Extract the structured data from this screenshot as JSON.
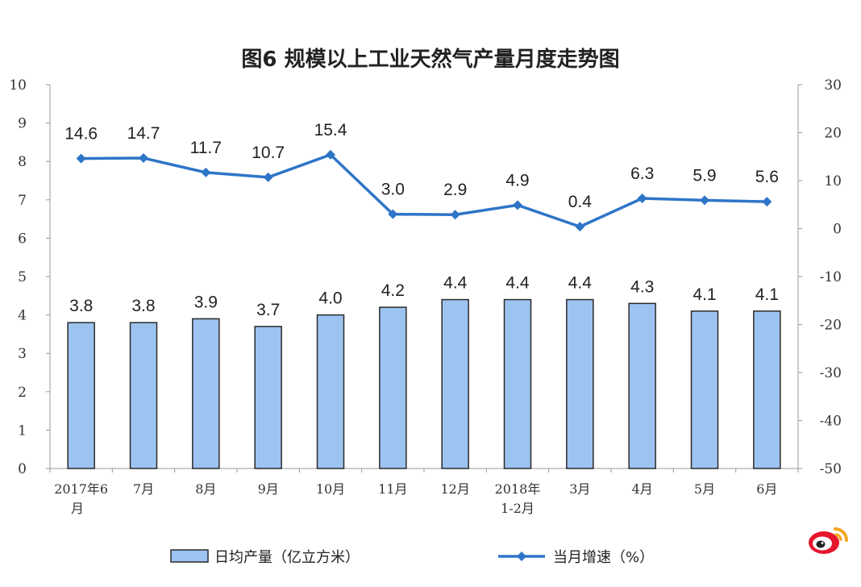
{
  "chart_data": {
    "type": "bar+line",
    "title": "图6 规模以上工业天然气产量月度走势图",
    "categories": [
      [
        "2017年6",
        "月"
      ],
      [
        "7月"
      ],
      [
        "8月"
      ],
      [
        "9月"
      ],
      [
        "10月"
      ],
      [
        "11月"
      ],
      [
        "12月"
      ],
      [
        "2018年",
        "1-2月"
      ],
      [
        "3月"
      ],
      [
        "4月"
      ],
      [
        "5月"
      ],
      [
        "6月"
      ]
    ],
    "series": [
      {
        "name": "日均产量（亿立方米）",
        "kind": "bar",
        "axis": "left",
        "color": "#9dc3f0",
        "values": [
          3.8,
          3.8,
          3.9,
          3.7,
          4.0,
          4.2,
          4.4,
          4.4,
          4.4,
          4.3,
          4.1,
          4.1
        ]
      },
      {
        "name": "当月增速（%）",
        "kind": "line",
        "axis": "right",
        "color": "#2e75c8",
        "values": [
          14.6,
          14.7,
          11.7,
          10.7,
          15.4,
          3.0,
          2.9,
          4.9,
          0.4,
          6.3,
          5.9,
          5.6
        ]
      }
    ],
    "left_axis": {
      "ylim": [
        0,
        10
      ],
      "ticks": [
        0,
        1,
        2,
        3,
        4,
        5,
        6,
        7,
        8,
        9,
        10
      ]
    },
    "right_axis": {
      "ylim": [
        -50,
        30
      ],
      "ticks": [
        -50,
        -40,
        -30,
        -20,
        -10,
        0,
        10,
        20,
        30
      ]
    },
    "legend_position": "bottom",
    "grid": false
  },
  "watermark": {
    "icon": "weibo-logo-icon",
    "colors": {
      "red": "#e6162d",
      "orange": "#f5a623"
    }
  }
}
